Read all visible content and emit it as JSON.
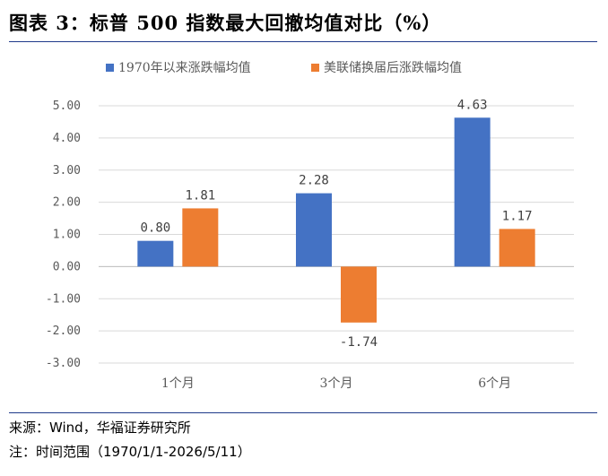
{
  "header": {
    "title": "图表 3：标普 500 指数最大回撤均值对比（%）"
  },
  "footer": {
    "source": "来源：Wind，华福证券研究所",
    "range_note": "注：时间范围（1970/1/1-2026/5/11）"
  },
  "colors": {
    "series1": "#4472C4",
    "series2": "#ED7D31",
    "rule": "#1f3a8a",
    "grid": "#d9d9d9"
  },
  "chart_data": {
    "type": "bar",
    "categories": [
      "1个月",
      "3个月",
      "6个月"
    ],
    "series": [
      {
        "name": "1970年以来涨跌幅均值",
        "values": [
          0.8,
          2.28,
          4.63
        ]
      },
      {
        "name": "美联储换届后涨跌幅均值",
        "values": [
          1.81,
          -1.74,
          1.17
        ]
      }
    ],
    "data_labels": [
      [
        "0.80",
        "2.28",
        "4.63"
      ],
      [
        "1.81",
        "-1.74",
        "1.17"
      ]
    ],
    "yticks": [
      "5.00",
      "4.00",
      "3.00",
      "2.00",
      "1.00",
      "0.00",
      "-1.00",
      "-2.00",
      "-3.00"
    ],
    "ylim": [
      -3,
      5
    ],
    "grid": true,
    "legend_position": "top-left"
  }
}
